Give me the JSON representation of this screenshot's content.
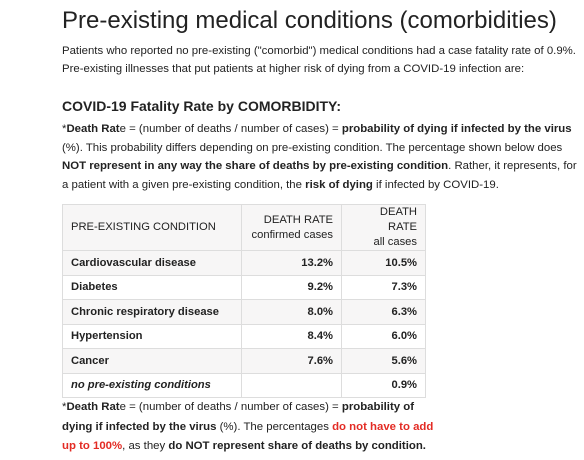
{
  "title": "Pre-existing medical conditions (comorbidities)",
  "intro": {
    "line1": "Patients who reported no pre-existing (\"comorbid\") medical conditions had a case fatality rate of 0.9%.",
    "line2": "Pre-existing illnesses that put patients at higher risk of dying from a COVID-19 infection are:"
  },
  "section_heading": "COVID-19 Fatality Rate by COMORBIDITY:",
  "note1": {
    "asterisk": "*",
    "term_a": "Death Rat",
    "term_b": "e",
    "formula": " = (number of deaths / number of cases) = ",
    "bold_phrase": "probability of dying if infected by the virus",
    "pct": " (%).",
    "sentence2": " This probability differs depending on pre-existing condition. The percentage shown below does ",
    "not_represent": "NOT represent in any way the share of deaths by pre-existing condition",
    "sentence3": ". Rather, it represents, for a patient with a given pre-existing condition, the ",
    "risk": "risk of dying",
    "sentence4": " if infected by COVID-19."
  },
  "table": {
    "headers": {
      "condition": "PRE-EXISTING CONDITION",
      "rate_confirmed_title": "DEATH RATE",
      "rate_confirmed_sub": "confirmed cases",
      "rate_all_title": "DEATH RATE",
      "rate_all_sub": "all cases"
    },
    "rows": [
      {
        "condition": "Cardiovascular disease",
        "confirmed": "13.2%",
        "all": "10.5%"
      },
      {
        "condition": "Diabetes",
        "confirmed": "9.2%",
        "all": "7.3%"
      },
      {
        "condition": "Chronic respiratory disease",
        "confirmed": "8.0%",
        "all": "6.3%"
      },
      {
        "condition": "Hypertension",
        "confirmed": "8.4%",
        "all": "6.0%"
      },
      {
        "condition": "Cancer",
        "confirmed": "7.6%",
        "all": "5.6%"
      },
      {
        "condition": "no pre-existing conditions",
        "confirmed": "",
        "all": "0.9%"
      }
    ]
  },
  "note2": {
    "asterisk": "*",
    "term_a": "Death Rat",
    "term_b": "e",
    "formula": " = (number of deaths / number of cases) = ",
    "bold_phrase": "probability of dying if infected by the virus",
    "pct": " (%). The percentages ",
    "red_phrase": "do not have to add up to 100%",
    "mid": ", as they ",
    "bold_end": "do NOT represent share of deaths by condition."
  },
  "colors": {
    "text": "#222222",
    "highlight_red": "#e32b24",
    "table_border": "#dddddd",
    "table_shade": "#f7f6f6"
  }
}
